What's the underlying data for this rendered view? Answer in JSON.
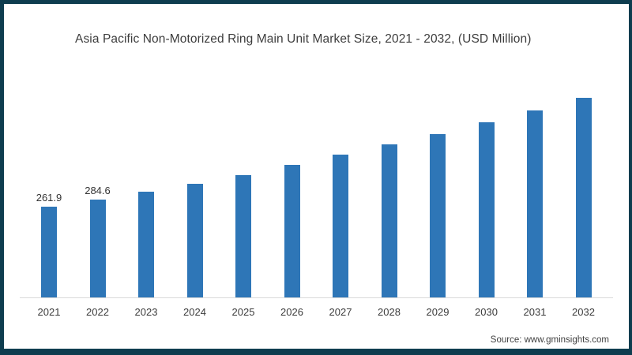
{
  "source": "Source: www.gminsights.com",
  "colors": {
    "bar": "#2e76b7",
    "frame_border": "#0e3d4f",
    "axis_line": "#d9d9d9",
    "title_text": "#3d3d3d",
    "label_text": "#3b3b3b"
  },
  "chart_data": {
    "type": "bar",
    "title": "Asia Pacific Non-Motorized Ring Main Unit Market Size, 2021 - 2032, (USD Million)",
    "categories": [
      "2021",
      "2022",
      "2023",
      "2024",
      "2025",
      "2026",
      "2027",
      "2028",
      "2029",
      "2030",
      "2031",
      "2032"
    ],
    "values": [
      261.9,
      284.6,
      307.5,
      330.4,
      355.6,
      385.3,
      415.0,
      444.7,
      474.4,
      508.7,
      543.0,
      579.6
    ],
    "data_labels": [
      "261.9",
      "284.6",
      "",
      "",
      "",
      "",
      "",
      "",
      "",
      "",
      "",
      ""
    ],
    "xlabel": "",
    "ylabel": "",
    "ylim": [
      0,
      620
    ],
    "grid": false,
    "legend": false,
    "y_axis_visible": false
  }
}
